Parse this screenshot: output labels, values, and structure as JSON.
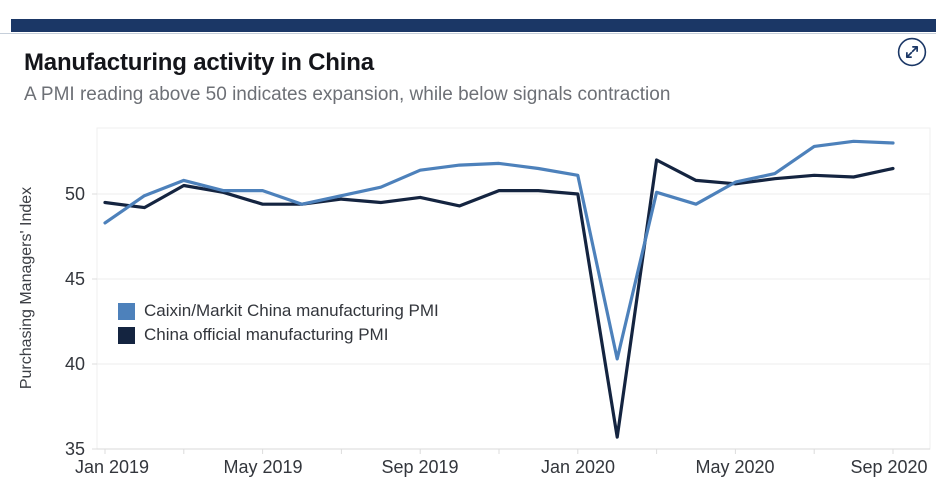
{
  "header": {
    "title": "Manufacturing activity in China",
    "subtitle": "A PMI reading above 50 indicates expansion, while below signals contraction"
  },
  "colors": {
    "top_bar": "#1b3766",
    "caixin_blue": "#4d81bb",
    "official_navy": "#142440",
    "title_text": "#14151a",
    "subtitle_text": "#6d7076",
    "axis_text": "#33363c",
    "gridline": "#ececec",
    "axis_line": "#d8d8d8",
    "tick": "#dcdcdc"
  },
  "chart_data": {
    "type": "line",
    "title": "Manufacturing activity in China",
    "xlabel": "",
    "ylabel": "Purchasing Managers' Index",
    "ylim": [
      35,
      54
    ],
    "grid": "horizontal",
    "legend_position": "inside-left",
    "x": [
      "Jan 2019",
      "Feb 2019",
      "Mar 2019",
      "Apr 2019",
      "May 2019",
      "Jun 2019",
      "Jul 2019",
      "Aug 2019",
      "Sep 2019",
      "Oct 2019",
      "Nov 2019",
      "Dec 2019",
      "Jan 2020",
      "Feb 2020",
      "Mar 2020",
      "Apr 2020",
      "May 2020",
      "Jun 2020",
      "Jul 2020",
      "Aug 2020",
      "Sep 2020"
    ],
    "x_ticklabels": [
      "Jan 2019",
      "May 2019",
      "Sep 2019",
      "Jan 2020",
      "May 2020",
      "Sep 2020"
    ],
    "y_ticks": [
      35,
      40,
      45,
      50
    ],
    "series": [
      {
        "name": "Caixin/Markit China manufacturing PMI",
        "color": "#4d81bb",
        "values": [
          48.3,
          49.9,
          50.8,
          50.2,
          50.2,
          49.4,
          49.9,
          50.4,
          51.4,
          51.7,
          51.8,
          51.5,
          51.1,
          40.3,
          50.1,
          49.4,
          50.7,
          51.2,
          52.8,
          53.1,
          53.0
        ]
      },
      {
        "name": "China official manufacturing PMI",
        "color": "#142440",
        "values": [
          49.5,
          49.2,
          50.5,
          50.1,
          49.4,
          49.4,
          49.7,
          49.5,
          49.8,
          49.3,
          50.2,
          50.2,
          50.0,
          35.7,
          52.0,
          50.8,
          50.6,
          50.9,
          51.1,
          51.0,
          51.5
        ]
      }
    ]
  }
}
